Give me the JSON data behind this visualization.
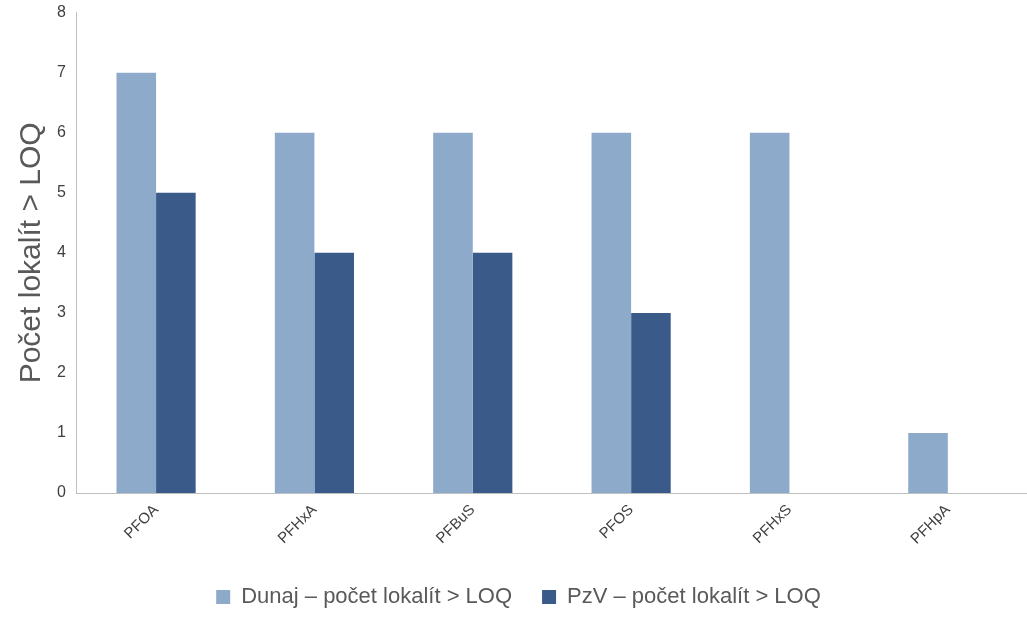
{
  "chart_data": {
    "type": "bar",
    "ylabel": "Počet lokalít > LOQ",
    "categories": [
      "PFOA",
      "PFHxA",
      "PFBuS",
      "PFOS",
      "PFHxS",
      "PFHpA"
    ],
    "series": [
      {
        "name": "Dunaj – počet lokalít > LOQ",
        "color": "#8eaacb",
        "values": [
          7,
          6,
          6,
          6,
          6,
          1
        ]
      },
      {
        "name": "PzV – počet lokalít > LOQ",
        "color": "#3a5a8a",
        "values": [
          5,
          4,
          4,
          3,
          0,
          0
        ]
      }
    ],
    "ylim": [
      0,
      8
    ],
    "yticks": [
      0,
      1,
      2,
      3,
      4,
      5,
      6,
      7,
      8
    ],
    "grid": false,
    "legend": "bottom"
  }
}
